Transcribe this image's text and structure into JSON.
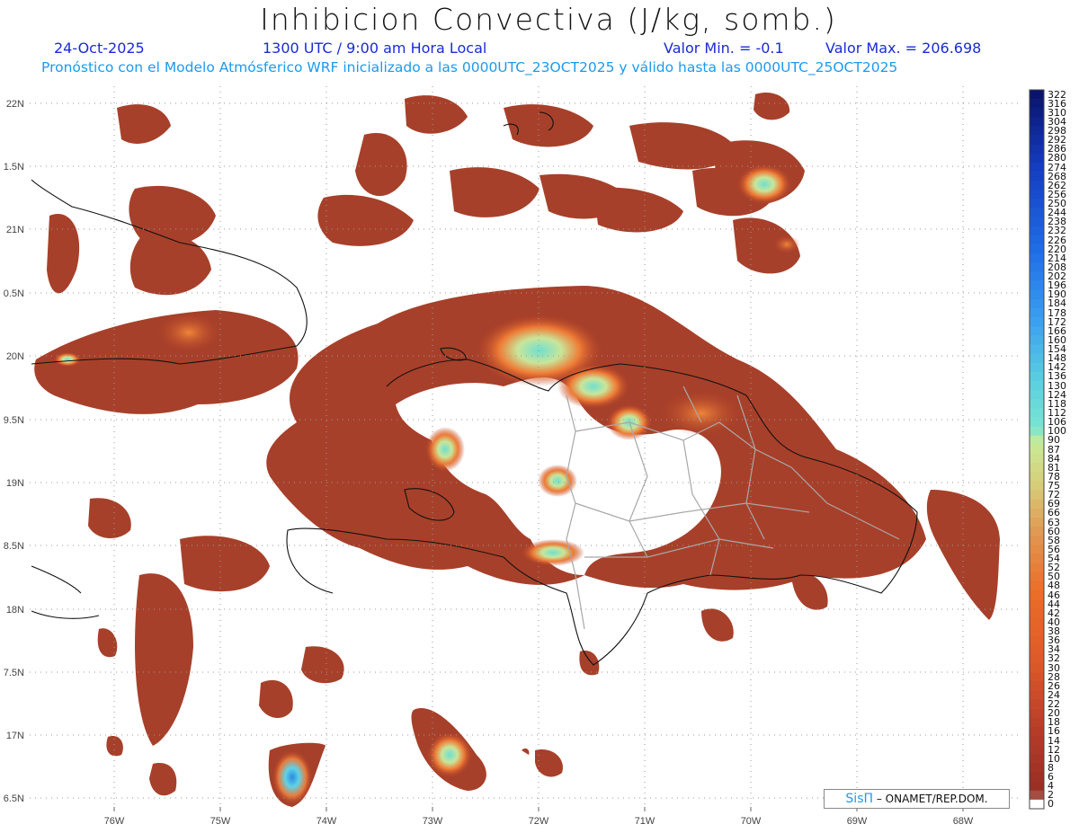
{
  "header": {
    "title": "Inhibicion Convectiva (J/kg, somb.)",
    "date": "24-Oct-2025",
    "time": "1300 UTC / 9:00 am Hora Local",
    "valmin": "Valor Min. = -0.1",
    "valmax": "Valor Max. = 206.698",
    "forecast": "Pronóstico con el Modelo Atmósferico WRF inicializado a las 0000UTC_23OCT2025 y válido hasta las  0000UTC_25OCT2025"
  },
  "axes": {
    "lat_labels": [
      "22N",
      "1.5N",
      "21N",
      "0.5N",
      "20N",
      "9.5N",
      "19N",
      "8.5N",
      "18N",
      "7.5N",
      "17N",
      "6.5N"
    ],
    "lon_labels": [
      "76W",
      "75W",
      "74W",
      "73W",
      "72W",
      "71W",
      "70W",
      "69W",
      "68W"
    ]
  },
  "colorbar": {
    "labels": [
      "322",
      "316",
      "310",
      "304",
      "298",
      "292",
      "286",
      "280",
      "274",
      "268",
      "262",
      "256",
      "250",
      "244",
      "238",
      "232",
      "226",
      "220",
      "214",
      "208",
      "202",
      "196",
      "190",
      "184",
      "178",
      "172",
      "166",
      "160",
      "154",
      "148",
      "142",
      "136",
      "130",
      "124",
      "118",
      "112",
      "106",
      "100",
      "90",
      "87",
      "84",
      "81",
      "78",
      "75",
      "72",
      "69",
      "66",
      "63",
      "60",
      "58",
      "56",
      "54",
      "52",
      "50",
      "48",
      "46",
      "44",
      "42",
      "40",
      "38",
      "36",
      "34",
      "32",
      "30",
      "28",
      "26",
      "24",
      "22",
      "20",
      "18",
      "16",
      "14",
      "12",
      "10",
      "8",
      "6",
      "4",
      "2",
      "0"
    ]
  },
  "credit": {
    "sis": "SisΠ",
    "text": "– ONAMET/REP.DOM."
  },
  "colors": {
    "low": "#a33a22",
    "mid": "#e8662a",
    "high": "#7ee6d2",
    "max": "#2a7fe0"
  }
}
